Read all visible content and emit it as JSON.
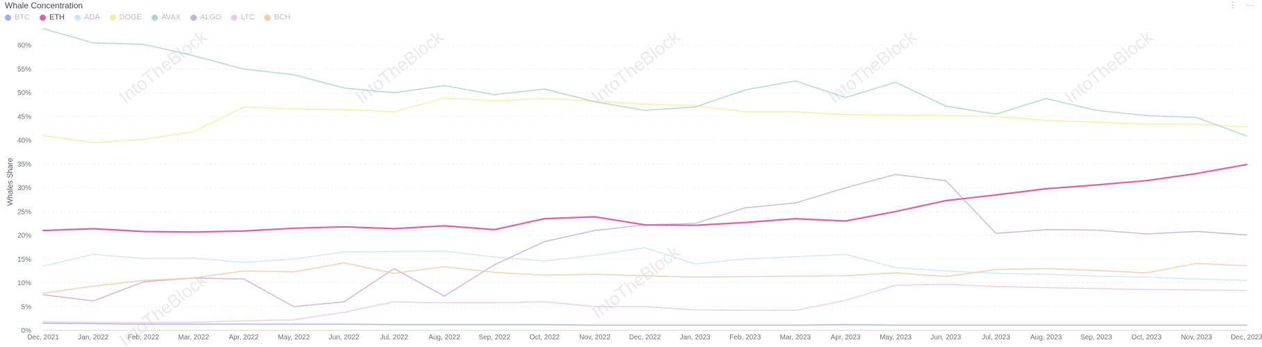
{
  "title": "Whale Concentration",
  "menu": {
    "info_icon": "⋮",
    "more_icon": "···"
  },
  "watermark": "IntoTheBlock",
  "chart_data": {
    "type": "line",
    "title": "Whale Concentration",
    "ylabel": "Whales Share",
    "xlabel": "",
    "ylim": [
      0,
      65
    ],
    "y_ticks": [
      "0%",
      "5%",
      "10%",
      "15%",
      "20%",
      "25%",
      "30%",
      "35%",
      "40%",
      "45%",
      "50%",
      "55%",
      "60%"
    ],
    "x_ticks": [
      "Dec, 2021",
      "Jan, 2022",
      "Feb, 2022",
      "Mar, 2022",
      "Apr, 2022",
      "May, 2022",
      "Jun, 2022",
      "Jul, 2022",
      "Aug, 2022",
      "Sep, 2022",
      "Oct, 2022",
      "Nov, 2022",
      "Dec, 2022",
      "Jan, 2023",
      "Feb, 2023",
      "Mar, 2023",
      "Apr, 2023",
      "May, 2023",
      "Jun, 2023",
      "Jul, 2023",
      "Aug, 2023",
      "Sep, 2023",
      "Oct, 2023",
      "Nov, 2023",
      "Dec, 2023"
    ],
    "grid": true,
    "legend_position": "top-left",
    "series": [
      {
        "name": "BTC",
        "color": "#9db2e8",
        "active": false,
        "values": [
          1.5,
          1.4,
          1.3,
          1.3,
          1.3,
          1.3,
          1.3,
          1.2,
          1.2,
          1.2,
          1.2,
          1.1,
          1.1,
          1.1,
          1.1,
          1.1,
          1.2,
          1.1,
          1.1,
          1.1,
          1.1,
          1.1,
          1.1,
          1.1,
          1.1
        ]
      },
      {
        "name": "ETH",
        "color": "#e85aa8",
        "active": true,
        "values": [
          21.0,
          21.4,
          20.8,
          20.7,
          20.9,
          21.5,
          21.8,
          21.4,
          22.0,
          21.2,
          23.5,
          23.9,
          22.2,
          22.1,
          22.7,
          23.5,
          23.0,
          25.0,
          27.3,
          28.5,
          29.8,
          30.6,
          31.5,
          33.0,
          34.9
        ]
      },
      {
        "name": "ADA",
        "color": "#cde6f5",
        "active": false,
        "values": [
          13.5,
          16.0,
          15.1,
          15.2,
          14.3,
          15.0,
          16.5,
          16.6,
          16.7,
          15.4,
          14.6,
          15.8,
          17.4,
          14.0,
          15.0,
          15.5,
          16.0,
          13.2,
          12.5,
          12.0,
          11.8,
          11.4,
          11.2,
          10.8,
          10.5
        ]
      },
      {
        "name": "DOGE",
        "color": "#f5ef9a",
        "active": false,
        "values": [
          41.0,
          39.5,
          40.2,
          41.8,
          47.0,
          46.6,
          46.5,
          46.0,
          48.9,
          48.3,
          48.8,
          48.2,
          47.6,
          47.3,
          46.0,
          46.0,
          45.4,
          45.3,
          45.2,
          45.0,
          44.2,
          43.8,
          43.4,
          43.4,
          42.8
        ]
      },
      {
        "name": "AVAX",
        "color": "#a9d6ce",
        "active": false,
        "values": [
          63.5,
          60.5,
          60.2,
          57.8,
          55.0,
          53.8,
          51.0,
          50.0,
          51.5,
          49.6,
          50.8,
          48.1,
          46.3,
          47.0,
          50.6,
          52.5,
          49.0,
          52.2,
          47.2,
          45.5,
          48.8,
          46.3,
          45.2,
          44.8,
          40.9
        ]
      },
      {
        "name": "ALGO",
        "color": "#c8b2d3",
        "active": false,
        "values": [
          7.5,
          6.2,
          10.2,
          11.0,
          10.8,
          5.0,
          6.0,
          13.0,
          7.2,
          13.8,
          18.7,
          21.0,
          22.2,
          22.5,
          25.8,
          26.8,
          30.0,
          32.8,
          31.5,
          20.4,
          21.2,
          21.1,
          20.3,
          20.8,
          20.1
        ]
      },
      {
        "name": "LTC",
        "color": "#ecc8ec",
        "active": false,
        "values": [
          1.8,
          1.7,
          1.7,
          1.7,
          2.0,
          2.2,
          3.8,
          6.0,
          5.8,
          5.8,
          6.0,
          5.0,
          5.0,
          4.3,
          4.2,
          4.2,
          6.3,
          9.5,
          9.7,
          9.2,
          9.0,
          8.8,
          8.6,
          8.5,
          8.4
        ]
      },
      {
        "name": "BCH",
        "color": "#f5cba6",
        "active": false,
        "values": [
          7.8,
          9.3,
          10.5,
          11.0,
          12.5,
          12.3,
          14.2,
          12.0,
          13.4,
          12.2,
          11.6,
          11.8,
          11.5,
          11.2,
          11.3,
          11.4,
          11.5,
          12.1,
          11.3,
          12.8,
          13.0,
          12.6,
          12.1,
          14.1,
          13.6
        ]
      }
    ]
  }
}
